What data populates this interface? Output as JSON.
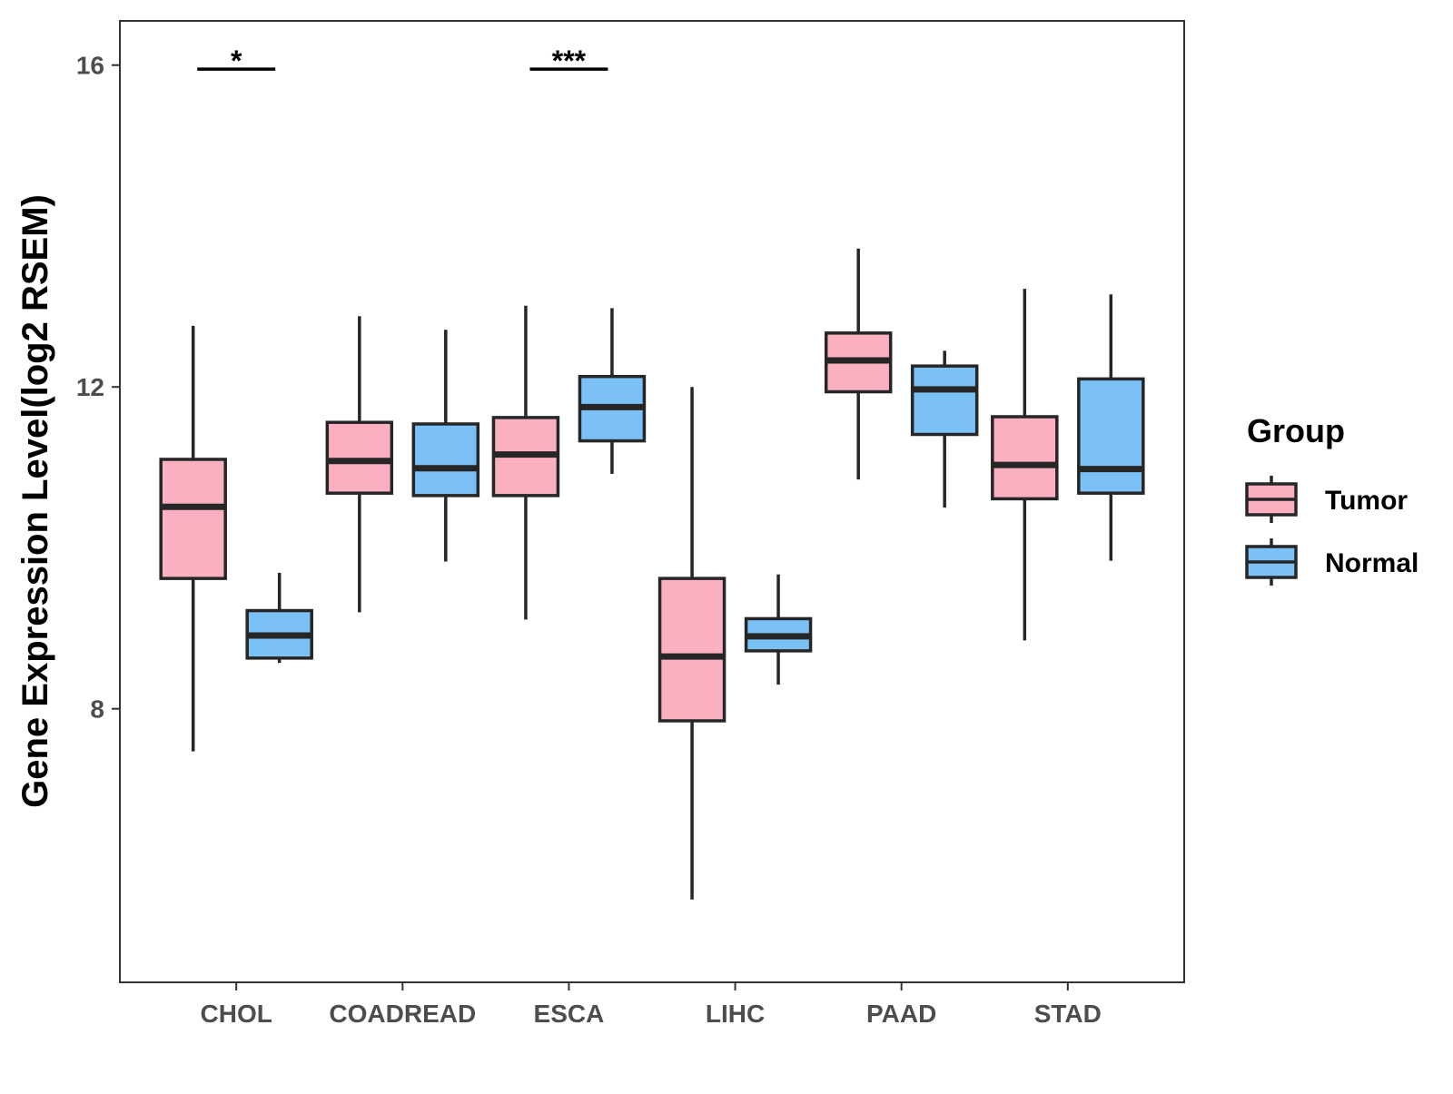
{
  "chart_data": {
    "type": "boxplot",
    "title": "",
    "xlabel": "",
    "ylabel": "Gene Expression Level(log2 RSEM)",
    "ylim": [
      4.6,
      16.55
    ],
    "yticks": [
      8,
      12,
      16
    ],
    "categories": [
      "CHOL",
      "COADREAD",
      "ESCA",
      "LIHC",
      "PAAD",
      "STAD"
    ],
    "series": [
      {
        "name": "Tumor",
        "color": "#FBB0C2",
        "boxes": [
          {
            "category": "CHOL",
            "whisker_low": 7.47,
            "q1": 9.62,
            "median": 10.51,
            "q3": 11.1,
            "whisker_high": 12.76
          },
          {
            "category": "COADREAD",
            "whisker_low": 9.2,
            "q1": 10.68,
            "median": 11.08,
            "q3": 11.56,
            "whisker_high": 12.88
          },
          {
            "category": "ESCA",
            "whisker_low": 9.11,
            "q1": 10.65,
            "median": 11.16,
            "q3": 11.62,
            "whisker_high": 13.01
          },
          {
            "category": "LIHC",
            "whisker_low": 5.63,
            "q1": 7.85,
            "median": 8.65,
            "q3": 9.62,
            "whisker_high": 12.0
          },
          {
            "category": "PAAD",
            "whisker_low": 10.85,
            "q1": 11.94,
            "median": 12.33,
            "q3": 12.67,
            "whisker_high": 13.72
          },
          {
            "category": "STAD",
            "whisker_low": 8.85,
            "q1": 10.61,
            "median": 11.03,
            "q3": 11.63,
            "whisker_high": 13.22
          }
        ]
      },
      {
        "name": "Normal",
        "color": "#7BC1F6",
        "boxes": [
          {
            "category": "CHOL",
            "whisker_low": 8.57,
            "q1": 8.63,
            "median": 8.91,
            "q3": 9.22,
            "whisker_high": 9.69
          },
          {
            "category": "COADREAD",
            "whisker_low": 9.83,
            "q1": 10.65,
            "median": 10.99,
            "q3": 11.54,
            "whisker_high": 12.71
          },
          {
            "category": "ESCA",
            "whisker_low": 10.92,
            "q1": 11.33,
            "median": 11.75,
            "q3": 12.13,
            "whisker_high": 12.98
          },
          {
            "category": "LIHC",
            "whisker_low": 8.3,
            "q1": 8.72,
            "median": 8.9,
            "q3": 9.12,
            "whisker_high": 9.67
          },
          {
            "category": "PAAD",
            "whisker_low": 10.5,
            "q1": 11.41,
            "median": 11.97,
            "q3": 12.26,
            "whisker_high": 12.45
          },
          {
            "category": "STAD",
            "whisker_low": 9.84,
            "q1": 10.68,
            "median": 10.98,
            "q3": 12.1,
            "whisker_high": 13.15
          }
        ]
      }
    ],
    "significance": [
      {
        "category": "CHOL",
        "label": "*",
        "y": 15.95
      },
      {
        "category": "ESCA",
        "label": "***",
        "y": 15.95
      }
    ],
    "legend": {
      "title": "Group",
      "position": "right",
      "entries": [
        "Tumor",
        "Normal"
      ]
    },
    "grid": false
  }
}
